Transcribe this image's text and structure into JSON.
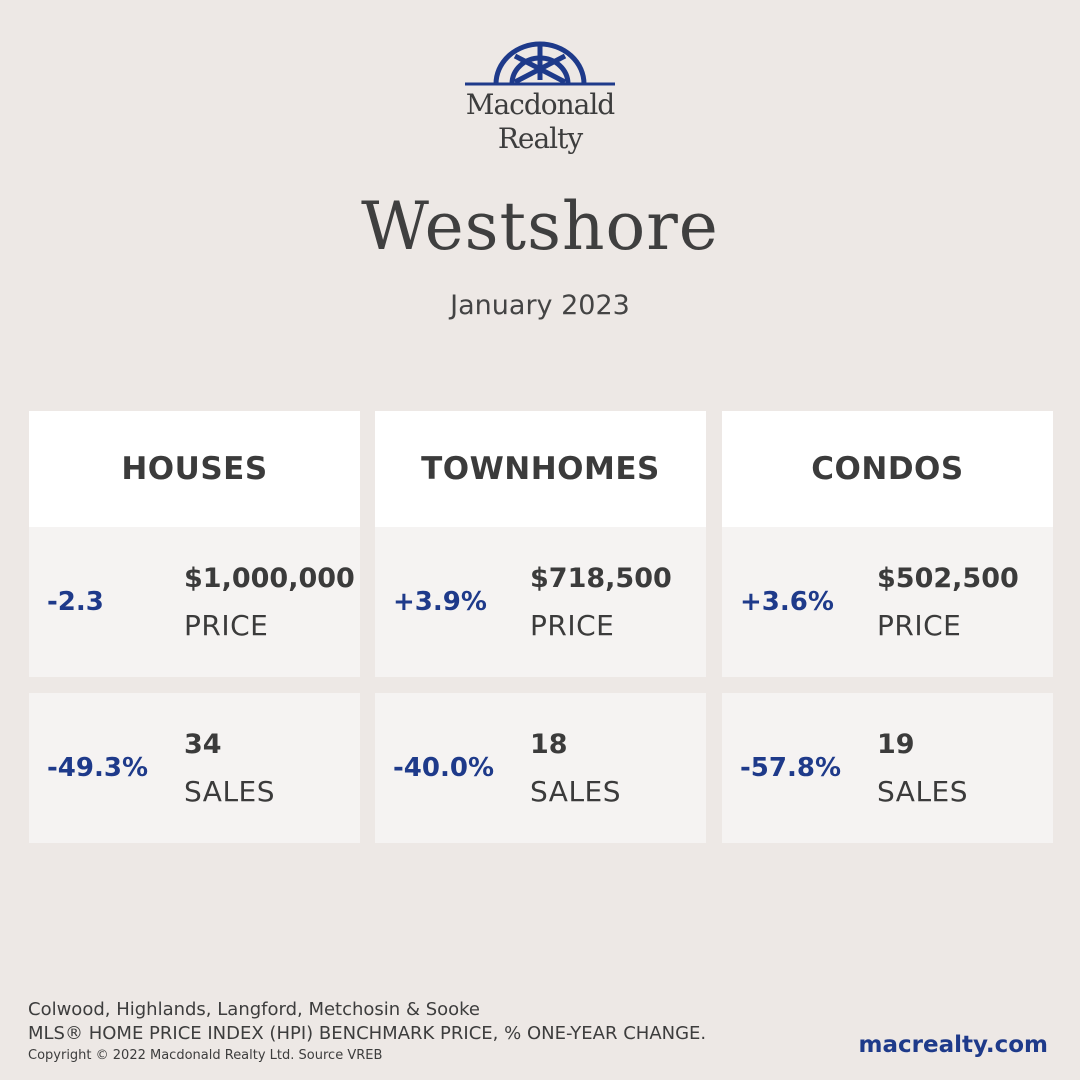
{
  "brand": {
    "name_line1": "Macdonald",
    "name_line2": "Realty",
    "color": "#1e3a8a"
  },
  "title": "Westshore",
  "subtitle": "January 2023",
  "columns": [
    {
      "header": "HOUSES",
      "price": {
        "change": "-2.3",
        "value": "$1,000,000",
        "label": "PRICE"
      },
      "sales": {
        "change": "-49.3%",
        "value": "34",
        "label": "SALES"
      }
    },
    {
      "header": "TOWNHOMES",
      "price": {
        "change": "+3.9%",
        "value": "$718,500",
        "label": "PRICE"
      },
      "sales": {
        "change": "-40.0%",
        "value": "18",
        "label": "SALES"
      }
    },
    {
      "header": "CONDOS",
      "price": {
        "change": "+3.6%",
        "value": "$502,500",
        "label": "PRICE"
      },
      "sales": {
        "change": "-57.8%",
        "value": "19",
        "label": "SALES"
      }
    }
  ],
  "footer": {
    "areas": "Colwood, Highlands, Langford, Metchosin & Sooke",
    "note": "MLS® HOME PRICE INDEX (HPI) BENCHMARK PRICE, % ONE-YEAR CHANGE.",
    "copyright": "Copyright © 2022 Macdonald Realty Ltd. Source VREB",
    "website": "macrealty.com"
  }
}
